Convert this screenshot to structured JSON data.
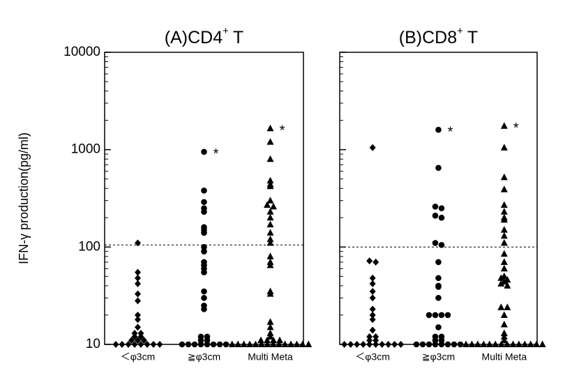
{
  "chart_data": [
    {
      "type": "scatter",
      "title": {
        "main": "(A)CD4",
        "sup": "+",
        "tail": "T"
      },
      "ylabel": "IFN-γ production(pg/ml)",
      "categories": [
        "＜φ3cm",
        "≧φ3cm",
        "Multi Meta"
      ],
      "markers": [
        "diamond",
        "circle",
        "triangle"
      ],
      "color": "#000000",
      "log_scale": true,
      "ylim": [
        10,
        10000
      ],
      "yticks": [
        10,
        100,
        1000,
        10000
      ],
      "threshold": 105,
      "values": [
        [
          110,
          55,
          48,
          42,
          33,
          28,
          20,
          18,
          15,
          13,
          13,
          12,
          12,
          11,
          11,
          11,
          10,
          10,
          10,
          10,
          10,
          10,
          10,
          10
        ],
        [
          950,
          380,
          290,
          250,
          230,
          160,
          150,
          140,
          100,
          90,
          70,
          65,
          60,
          55,
          35,
          30,
          25,
          23,
          12,
          12,
          11,
          11,
          10,
          10,
          10,
          10,
          10,
          10,
          10,
          10
        ],
        [
          1650,
          1200,
          800,
          480,
          440,
          420,
          300,
          270,
          260,
          230,
          200,
          170,
          140,
          120,
          110,
          80,
          70,
          65,
          35,
          33,
          17,
          15,
          13,
          12,
          11,
          11,
          11,
          11,
          10,
          10,
          10,
          10,
          10,
          10,
          10,
          10,
          10,
          10,
          10,
          10,
          10,
          10
        ]
      ],
      "annotations": [
        {
          "text": "*",
          "category": 1,
          "y": 950
        },
        {
          "text": "*",
          "category": 2,
          "y": 1650
        }
      ]
    },
    {
      "type": "scatter",
      "title": {
        "main": "(B)CD8",
        "sup": "+",
        "tail": "T"
      },
      "categories": [
        "＜φ3cm",
        "≧φ3cm",
        "Multi Meta"
      ],
      "markers": [
        "diamond",
        "circle",
        "triangle"
      ],
      "color": "#000000",
      "log_scale": true,
      "ylim": [
        10,
        10000
      ],
      "yticks": [
        10,
        100,
        1000,
        10000
      ],
      "threshold": 100,
      "values": [
        [
          1050,
          72,
          70,
          48,
          42,
          35,
          30,
          23,
          20,
          18,
          14,
          12,
          12,
          11,
          11,
          10,
          10,
          10,
          10,
          10,
          10,
          10,
          10,
          10,
          10
        ],
        [
          1600,
          650,
          260,
          250,
          210,
          200,
          110,
          105,
          70,
          48,
          40,
          39,
          30,
          20,
          20,
          20,
          20,
          15,
          12,
          12,
          11,
          11,
          10,
          10,
          10,
          10,
          10,
          10,
          10,
          10
        ],
        [
          1750,
          1050,
          520,
          390,
          270,
          230,
          200,
          190,
          150,
          130,
          110,
          85,
          70,
          60,
          50,
          48,
          46,
          44,
          42,
          40,
          24,
          24,
          20,
          16,
          13,
          12,
          11,
          10,
          10,
          10,
          10,
          10,
          10,
          10,
          10,
          10,
          10,
          10,
          10,
          10,
          10
        ]
      ],
      "annotations": [
        {
          "text": "*",
          "category": 1,
          "y": 1600
        },
        {
          "text": "*",
          "category": 2,
          "y": 1750
        }
      ]
    }
  ]
}
